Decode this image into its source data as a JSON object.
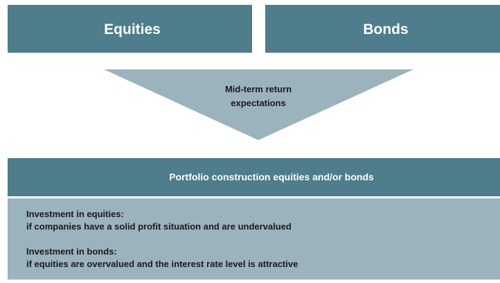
{
  "boxes": {
    "left": "Equities",
    "right": "Bonds"
  },
  "funnel": {
    "label_line1": "Mid-term return",
    "label_line2": "expectations"
  },
  "portfolio": {
    "title": "Portfolio construction equities and/or bonds",
    "items": [
      {
        "heading": "Investment in equities:",
        "text": "if companies have a solid profit situation and are undervalued"
      },
      {
        "heading": "Investment in bonds:",
        "text": "if equities are overvalued and the interest rate level is attractive"
      }
    ]
  }
}
